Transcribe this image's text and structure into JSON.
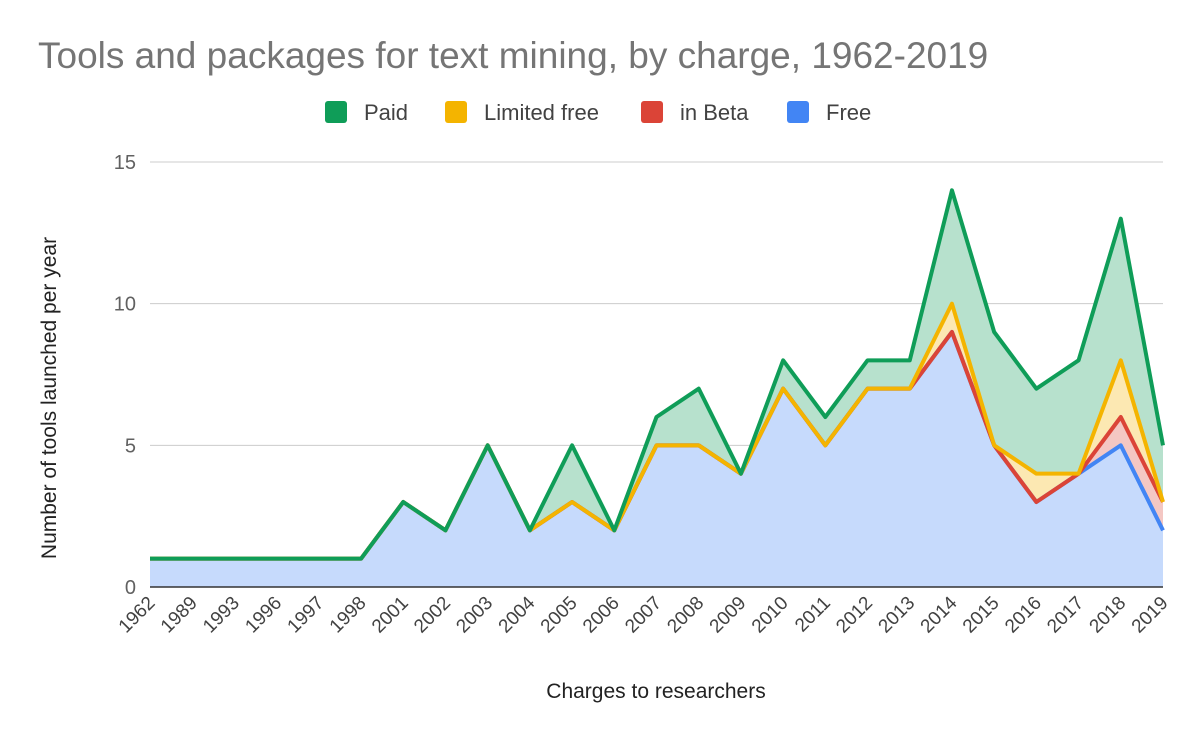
{
  "chart_data": {
    "type": "area",
    "stacked": false,
    "title": "Tools and packages for text mining, by charge, 1962-2019",
    "xlabel": "Charges to researchers",
    "ylabel": "Number of tools launched per year",
    "ylim": [
      0,
      15
    ],
    "yticks": [
      "0",
      "5",
      "10",
      "15"
    ],
    "grid": true,
    "legend_position": "top",
    "categories": [
      "1962",
      "1989",
      "1993",
      "1996",
      "1997",
      "1998",
      "2001",
      "2002",
      "2003",
      "2004",
      "2005",
      "2006",
      "2007",
      "2008",
      "2009",
      "2010",
      "2011",
      "2012",
      "2013",
      "2014",
      "2015",
      "2016",
      "2017",
      "2018",
      "2019"
    ],
    "series": [
      {
        "name": "Paid",
        "color": "#0f9d58",
        "fill": "#b7e1cd",
        "values": [
          1,
          1,
          1,
          1,
          1,
          1,
          3,
          2,
          5,
          2,
          5,
          2,
          6,
          7,
          4,
          8,
          6,
          8,
          8,
          14,
          9,
          7,
          8,
          13,
          5
        ]
      },
      {
        "name": "Limited free",
        "color": "#f4b400",
        "fill": "#fce8b2",
        "values": [
          1,
          1,
          1,
          1,
          1,
          1,
          3,
          2,
          5,
          2,
          3,
          2,
          5,
          5,
          4,
          7,
          5,
          7,
          7,
          10,
          5,
          4,
          4,
          8,
          3
        ]
      },
      {
        "name": "in Beta",
        "color": "#db4437",
        "fill": "#f4c7c3",
        "values": [
          1,
          1,
          1,
          1,
          1,
          1,
          3,
          2,
          5,
          2,
          3,
          2,
          5,
          5,
          4,
          7,
          5,
          7,
          7,
          9,
          5,
          3,
          4,
          6,
          3
        ]
      },
      {
        "name": "Free",
        "color": "#4285f4",
        "fill": "#c6dafc",
        "values": [
          1,
          1,
          1,
          1,
          1,
          1,
          3,
          2,
          5,
          2,
          3,
          2,
          5,
          5,
          4,
          7,
          5,
          7,
          7,
          9,
          5,
          3,
          4,
          5,
          2
        ]
      }
    ]
  }
}
